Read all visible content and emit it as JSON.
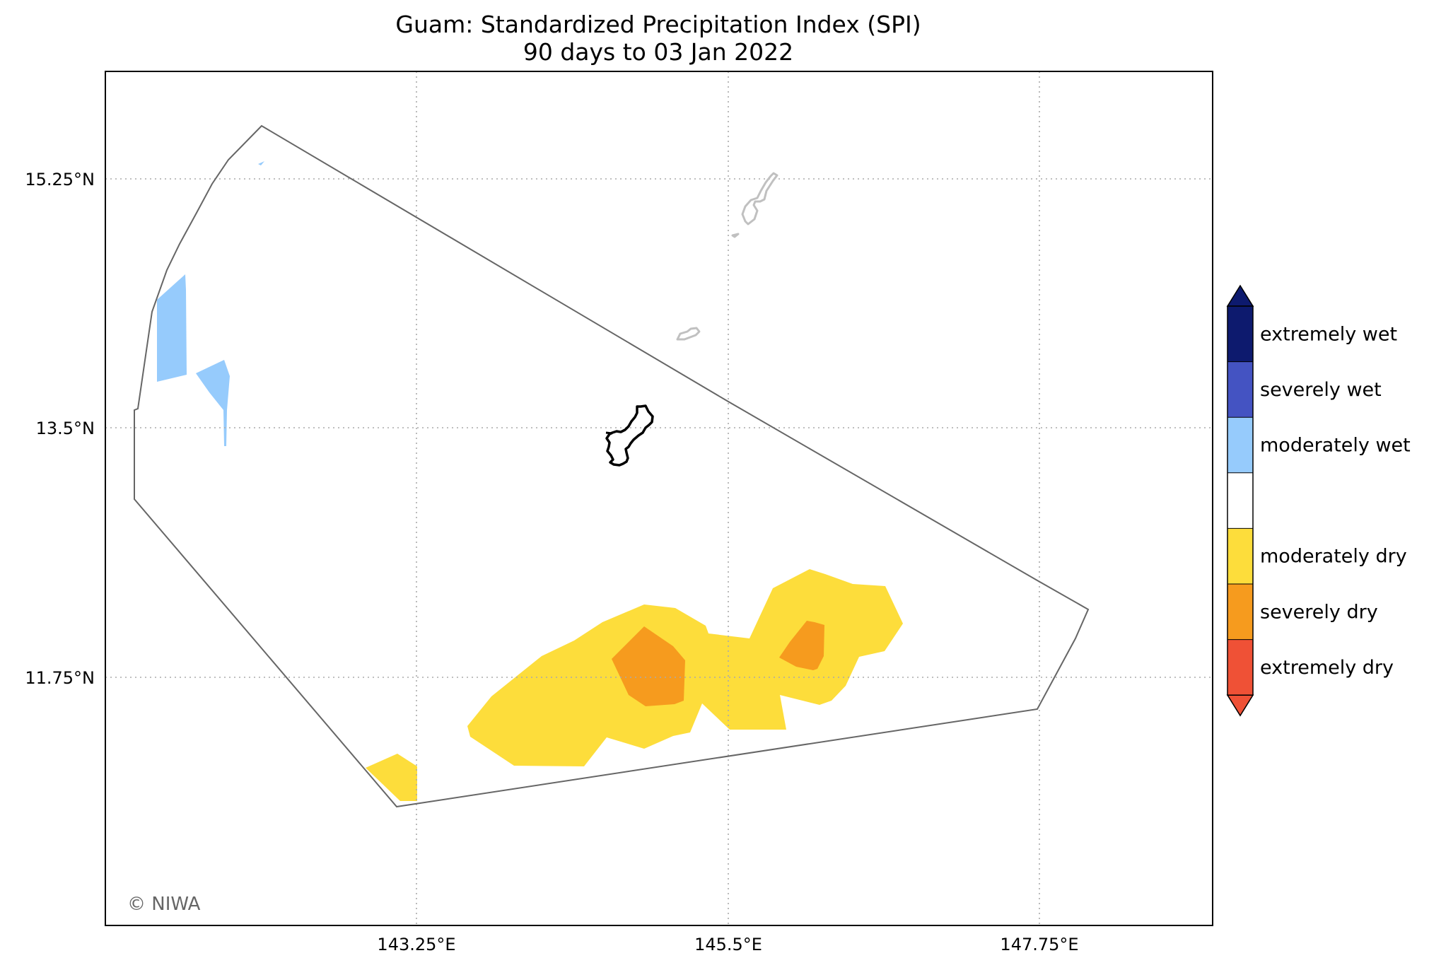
{
  "title": {
    "line1": "Guam: Standardized Precipitation Index (SPI)",
    "line2": "90 days to 03 Jan 2022"
  },
  "axes": {
    "lat_ticks": [
      "15.25°N",
      "13.5°N",
      "11.75°N"
    ],
    "lon_ticks": [
      "143.25°E",
      "145.5°E",
      "147.75°E"
    ],
    "grid": "dotted"
  },
  "legend": {
    "placement": "right",
    "items": [
      {
        "label": "extremely wet",
        "color": "#0d1a6e"
      },
      {
        "label": "severely wet",
        "color": "#4453c2"
      },
      {
        "label": "moderately wet",
        "color": "#96cbfc"
      },
      {
        "label": "",
        "color": "#ffffff"
      },
      {
        "label": "moderately dry",
        "color": "#fddd3b"
      },
      {
        "label": "severely dry",
        "color": "#f69b1e"
      },
      {
        "label": "extremely dry",
        "color": "#ef5136"
      }
    ]
  },
  "credit": "© NIWA",
  "colors": {
    "frame": "#000000",
    "region_outline": "#666666",
    "guam_outline": "#000000",
    "island_outline": "#c0c0c0"
  }
}
